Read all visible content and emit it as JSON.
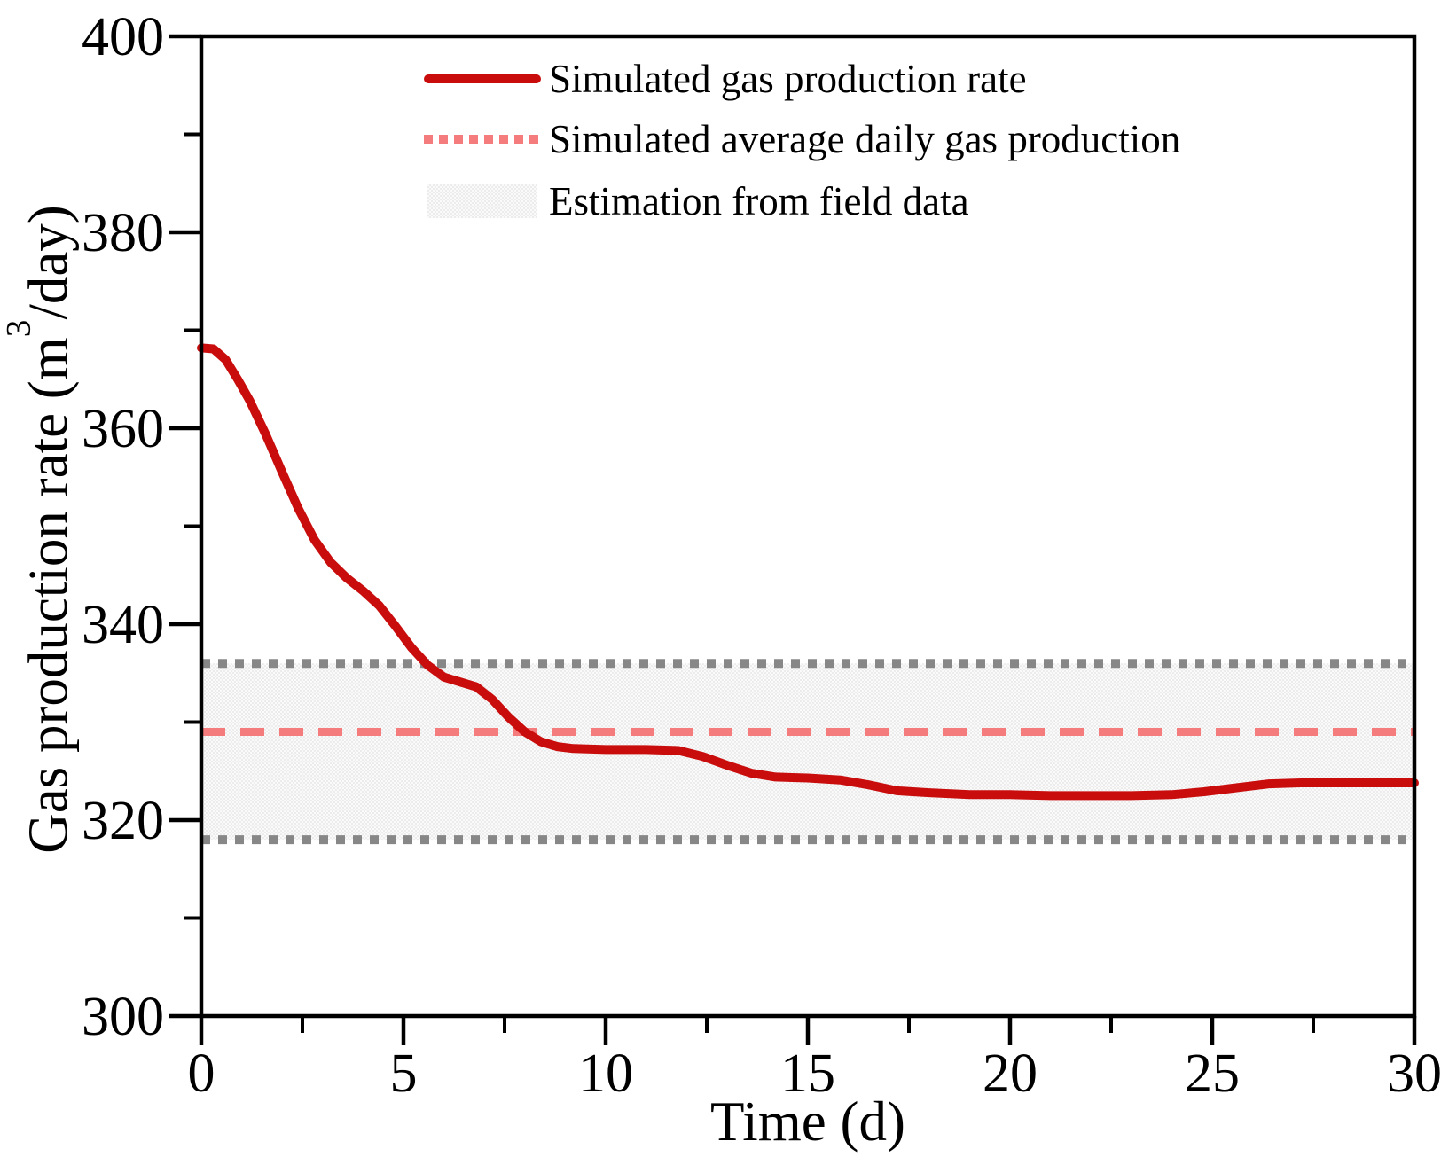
{
  "chart_data": {
    "type": "line",
    "title": "",
    "xlabel": "Time (d)",
    "ylabel": "Gas production rate (m³/day)",
    "ylabel_parts": {
      "pre": "Gas production rate (m",
      "sup": "3",
      "post": "/day)"
    },
    "xlim": [
      0,
      30
    ],
    "ylim": [
      300,
      400
    ],
    "x_major_ticks": [
      0,
      5,
      10,
      15,
      20,
      25,
      30
    ],
    "x_minor_ticks": [
      2.5,
      7.5,
      12.5,
      17.5,
      22.5,
      27.5
    ],
    "y_major_ticks": [
      300,
      320,
      340,
      360,
      380,
      400
    ],
    "y_minor_ticks": [
      310,
      330,
      350,
      370,
      390
    ],
    "grid": false,
    "legend_position": "top-inside",
    "frame_color": "#000000",
    "series": [
      {
        "name": "simulated_gas_production_rate",
        "label": "Simulated gas production rate",
        "type": "line",
        "style": "solid",
        "color": "#c90d0d",
        "points": [
          [
            0,
            368.2
          ],
          [
            0.3,
            368.1
          ],
          [
            0.6,
            367.0
          ],
          [
            0.9,
            365.0
          ],
          [
            1.2,
            362.8
          ],
          [
            1.6,
            359.3
          ],
          [
            2.0,
            355.5
          ],
          [
            2.4,
            351.8
          ],
          [
            2.8,
            348.6
          ],
          [
            3.2,
            346.3
          ],
          [
            3.6,
            344.7
          ],
          [
            4.0,
            343.4
          ],
          [
            4.4,
            341.9
          ],
          [
            4.8,
            339.8
          ],
          [
            5.2,
            337.6
          ],
          [
            5.6,
            335.8
          ],
          [
            6.0,
            334.6
          ],
          [
            6.4,
            334.1
          ],
          [
            6.8,
            333.6
          ],
          [
            7.2,
            332.3
          ],
          [
            7.6,
            330.5
          ],
          [
            8.0,
            329.0
          ],
          [
            8.4,
            328.0
          ],
          [
            8.8,
            327.5
          ],
          [
            9.2,
            327.3
          ],
          [
            10.0,
            327.2
          ],
          [
            11.0,
            327.2
          ],
          [
            11.8,
            327.1
          ],
          [
            12.4,
            326.5
          ],
          [
            13.0,
            325.6
          ],
          [
            13.6,
            324.8
          ],
          [
            14.2,
            324.4
          ],
          [
            15.0,
            324.3
          ],
          [
            15.8,
            324.1
          ],
          [
            16.5,
            323.6
          ],
          [
            17.2,
            323.0
          ],
          [
            18.0,
            322.8
          ],
          [
            19.0,
            322.6
          ],
          [
            20.0,
            322.6
          ],
          [
            21.0,
            322.5
          ],
          [
            22.0,
            322.5
          ],
          [
            23.0,
            322.5
          ],
          [
            24.0,
            322.6
          ],
          [
            24.8,
            322.9
          ],
          [
            25.6,
            323.3
          ],
          [
            26.4,
            323.7
          ],
          [
            27.2,
            323.8
          ],
          [
            28.0,
            323.8
          ],
          [
            29.0,
            323.8
          ],
          [
            30.0,
            323.8
          ]
        ]
      },
      {
        "name": "simulated_average_daily_gas_production",
        "label": "Simulated average daily gas production",
        "type": "hline",
        "style": "dashed",
        "color": "#f57c7c",
        "value": 329
      },
      {
        "name": "estimation_from_field_data",
        "label": "Estimation from field data",
        "type": "band",
        "style": "shaded",
        "fill_base": "#fafafa",
        "fill_check": "#ececec",
        "border_color": "#878787",
        "range": [
          318,
          336
        ]
      }
    ]
  }
}
